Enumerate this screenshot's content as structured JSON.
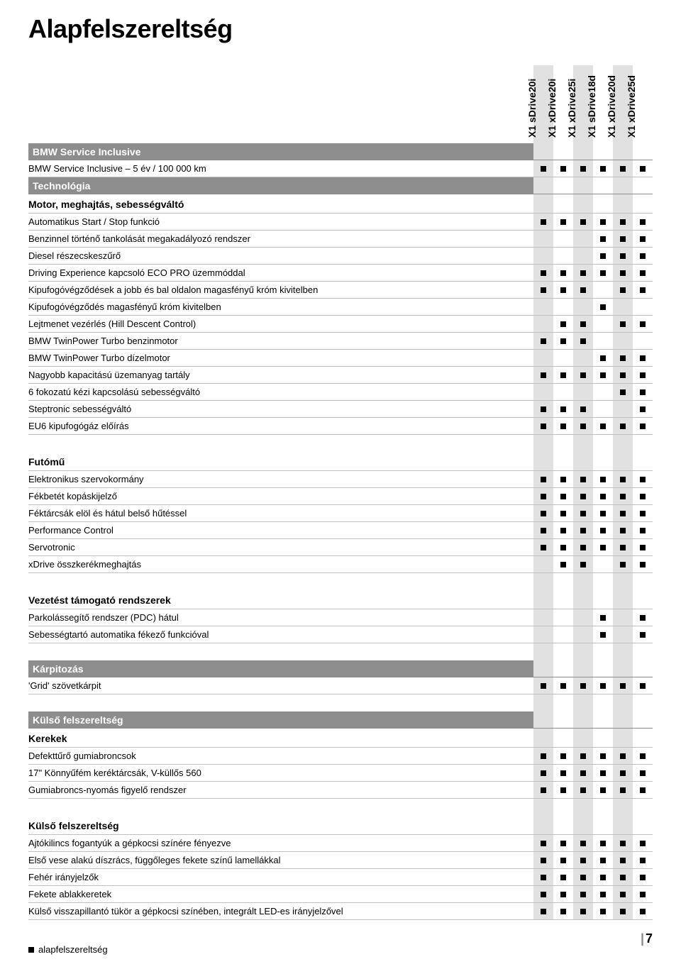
{
  "page_title": "Alapfelszereltség",
  "columns": [
    {
      "id": "c0",
      "label": "X1 sDrive20i",
      "shaded": true
    },
    {
      "id": "c1",
      "label": "X1 xDrive20i",
      "shaded": false
    },
    {
      "id": "c2",
      "label": "X1 xDrive25i",
      "shaded": true
    },
    {
      "id": "c3",
      "label": "X1 sDrive18d",
      "shaded": false
    },
    {
      "id": "c4",
      "label": "X1 xDrive20d",
      "shaded": true
    },
    {
      "id": "c5",
      "label": "X1 xDrive25d",
      "shaded": false
    }
  ],
  "blocks": [
    {
      "section": "BMW Service Inclusive",
      "rows": [
        {
          "label": "BMW Service Inclusive – 5 év / 100 000 km",
          "v": [
            1,
            1,
            1,
            1,
            1,
            1
          ]
        }
      ],
      "sub": null
    },
    {
      "section": "Technológia",
      "sub": "Motor, meghajtás, sebességváltó",
      "rows": [
        {
          "label": "Automatikus Start / Stop funkció",
          "v": [
            1,
            1,
            1,
            1,
            1,
            1
          ]
        },
        {
          "label": "Benzinnel történő tankolását megakadályozó rendszer",
          "v": [
            0,
            0,
            0,
            1,
            1,
            1
          ]
        },
        {
          "label": "Diesel részecskeszűrő",
          "v": [
            0,
            0,
            0,
            1,
            1,
            1
          ]
        },
        {
          "label": "Driving Experience kapcsoló ECO PRO üzemmóddal",
          "v": [
            1,
            1,
            1,
            1,
            1,
            1
          ]
        },
        {
          "label": "Kipufogóvégződések a jobb és bal oldalon magasfényű króm kivitelben",
          "v": [
            1,
            1,
            1,
            0,
            1,
            1
          ]
        },
        {
          "label": "Kipufogóvégződés magasfényű króm kivitelben",
          "v": [
            0,
            0,
            0,
            1,
            0,
            0
          ]
        },
        {
          "label": "Lejtmenet vezérlés (Hill Descent Control)",
          "v": [
            0,
            1,
            1,
            0,
            1,
            1
          ]
        },
        {
          "label": "BMW TwinPower Turbo benzinmotor",
          "v": [
            1,
            1,
            1,
            0,
            0,
            0
          ]
        },
        {
          "label": "BMW TwinPower Turbo dízelmotor",
          "v": [
            0,
            0,
            0,
            1,
            1,
            1
          ]
        },
        {
          "label": "Nagyobb kapacitású üzemanyag tartály",
          "v": [
            1,
            1,
            1,
            1,
            1,
            1
          ]
        },
        {
          "label": "6 fokozatú kézi kapcsolású sebességváltó",
          "v": [
            0,
            0,
            0,
            0,
            1,
            1
          ]
        },
        {
          "label": "Steptronic sebességváltó",
          "v": [
            1,
            1,
            1,
            0,
            0,
            1
          ]
        },
        {
          "label": "EU6 kipufogógáz előírás",
          "v": [
            1,
            1,
            1,
            1,
            1,
            1
          ]
        }
      ]
    },
    {
      "sub": "Futómű",
      "gap_before": true,
      "rows": [
        {
          "label": "Elektronikus szervokormány",
          "v": [
            1,
            1,
            1,
            1,
            1,
            1
          ]
        },
        {
          "label": "Fékbetét kopáskijelző",
          "v": [
            1,
            1,
            1,
            1,
            1,
            1
          ]
        },
        {
          "label": "Féktárcsák elöl és hátul belső hűtéssel",
          "v": [
            1,
            1,
            1,
            1,
            1,
            1
          ]
        },
        {
          "label": "Performance Control",
          "v": [
            1,
            1,
            1,
            1,
            1,
            1
          ]
        },
        {
          "label": "Servotronic",
          "v": [
            1,
            1,
            1,
            1,
            1,
            1
          ]
        },
        {
          "label": "xDrive összkerékmeghajtás",
          "v": [
            0,
            1,
            1,
            0,
            1,
            1
          ]
        }
      ]
    },
    {
      "sub": "Vezetést támogató rendszerek",
      "gap_before": true,
      "rows": [
        {
          "label": "Parkolássegítő rendszer (PDC) hátul",
          "v": [
            0,
            0,
            0,
            1,
            0,
            1
          ]
        },
        {
          "label": "Sebességtartó automatika fékező funkcióval",
          "v": [
            0,
            0,
            0,
            1,
            0,
            1
          ]
        }
      ]
    },
    {
      "section": "Kárpitozás",
      "gap_before": true,
      "rows": [
        {
          "label": "'Grid' szövetkárpit",
          "v": [
            1,
            1,
            1,
            1,
            1,
            1
          ]
        }
      ]
    },
    {
      "section": "Külső felszereltség",
      "gap_before": true,
      "sub": "Kerekek",
      "rows": [
        {
          "label": "Defekttűrő gumiabroncsok",
          "v": [
            1,
            1,
            1,
            1,
            1,
            1
          ]
        },
        {
          "label": "17\" Könnyűfém keréktárcsák, V-küllős 560",
          "v": [
            1,
            1,
            1,
            1,
            1,
            1
          ]
        },
        {
          "label": "Gumiabroncs-nyomás figyelő rendszer",
          "v": [
            1,
            1,
            1,
            1,
            1,
            1
          ]
        }
      ]
    },
    {
      "sub": "Külső felszereltség",
      "gap_before": true,
      "rows": [
        {
          "label": "Ajtókilincs fogantyúk a gépkocsi színére fényezve",
          "v": [
            1,
            1,
            1,
            1,
            1,
            1
          ]
        },
        {
          "label": "Első vese alakú díszrács, függőleges fekete színű lamellákkal",
          "v": [
            1,
            1,
            1,
            1,
            1,
            1
          ]
        },
        {
          "label": "Fehér irányjelzők",
          "v": [
            1,
            1,
            1,
            1,
            1,
            1
          ]
        },
        {
          "label": "Fekete ablakkeretek",
          "v": [
            1,
            1,
            1,
            1,
            1,
            1
          ]
        },
        {
          "label": "Külső visszapillantó tükör a gépkocsi színében, integrált LED-es irányjelzővel",
          "v": [
            1,
            1,
            1,
            1,
            1,
            1
          ]
        }
      ]
    }
  ],
  "legend_text": "alapfelszereltség",
  "page_number": "7"
}
